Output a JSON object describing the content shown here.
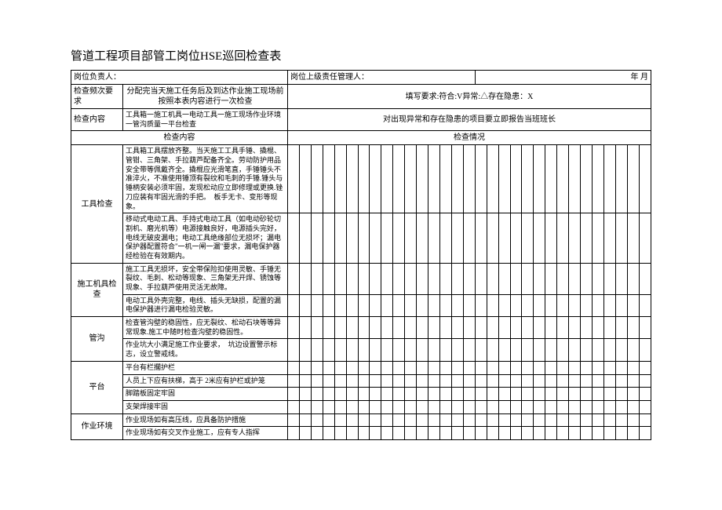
{
  "title": "管道工程项目部管工岗位HSE巡回检查表",
  "header": {
    "left1": "岗位负责人：",
    "mid1": "岗位上级责任管理人：",
    "right1": "年 月",
    "freq_label": "检查频次要求",
    "freq_text": "分配完当天施工任务后及到达作业施工现场前按照本表内容进行一次检查",
    "fill_req": "填写要求:符合:V异常:△存在隐患：X",
    "content_label": "检查内容",
    "content_text": "工具箱一施工机具一电动工具一施工现场作业环境一管沟质量一平台检查",
    "report_text": "对出现异常和存在隐患的项目要立即报告当班班长",
    "col_content": "检查内容",
    "col_status": "检查情况"
  },
  "rows": [
    {
      "cat": "工具检查",
      "span": 2,
      "items": [
        "工具箱工具摆放齐整。当天施工工具手锤、撬棍、管钳、三角架、手拉葫芦配备齐全。劳动防护用品安全带等佩戴齐全。撬棍应光滑笔直，手锤锤头不准淬火，不准使用锤顶有裂纹和毛刺的手锤.锤头与锤柄安装必须牢固，发现松动应立即修理或更换.锉刀应装有牢固光滑的手把。　板手无卡、变形等现象。",
        "移动式电动工具、手持式电动工具（如电动砂轮切割机、磨光机等）电源接触良好，电源插头完好，电线无破皮漏电；电动工具绝缘部位无损坏；漏电保护器配置符合\"一机一闸一漏\"要求，漏电保护器经检验在有效期内。"
      ]
    },
    {
      "cat": "施工机具检查",
      "span": 2,
      "items": [
        "施工工具无损坏，安全带保险扣使用灵敏、手锤无裂纹、毛刺、松动等现象、三角架无开焊、锈蚀等现象、手拉葫芦使用灵活无故障。",
        "电动工具外壳完整，电线、插头无缺损，配置的漏电保护器进行漏电检验灵敏。"
      ]
    },
    {
      "cat": "管沟",
      "span": 2,
      "items": [
        "检查管沟壁的稳固性，应无裂纹、松动石块等等异常现象.施工中随时检查沟壁的稳固性。",
        "作业坑大小满足施工作业要求，　坑边设置警示标志，设立警戒线。"
      ]
    },
    {
      "cat": "平台",
      "span": 4,
      "items": [
        "平台有栏擱护栏",
        "人员上下应有扶梯，高于 2米应有护栏或护笼",
        "脚踏板固定牢固",
        "支架焊接牢固"
      ]
    },
    {
      "cat": "作业环境",
      "span": 2,
      "items": [
        "作业现场如有高压线，应具备防护措施",
        "作业现场如有交叉作业施工，应有专人指挥"
      ]
    }
  ],
  "layout": {
    "check_cols": 31,
    "cat_w": 66,
    "desc_w": 210
  }
}
